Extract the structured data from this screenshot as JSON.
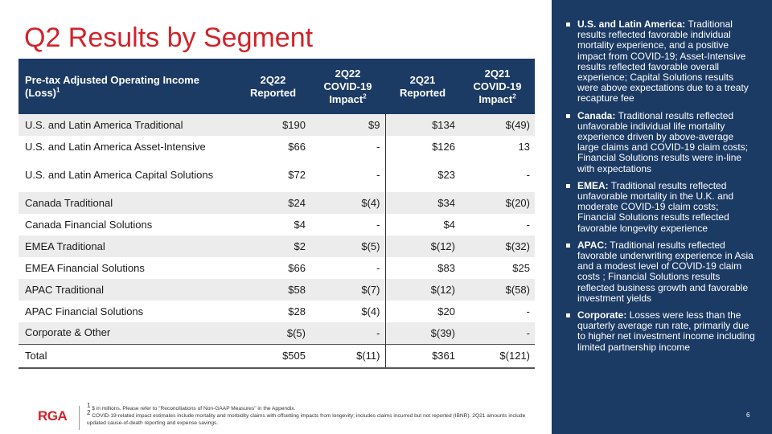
{
  "title": "Q2 Results by Segment",
  "table": {
    "header": {
      "col0_line1": "Pre-tax Adjusted Operating Income",
      "col0_line2": "(Loss)",
      "col0_sup": "1",
      "col1_line1": "2Q22",
      "col1_line2": "Reported",
      "col2_line1": "2Q22",
      "col2_line2": "COVID-19",
      "col2_line3": "Impact",
      "col2_sup": "2",
      "col3_line1": "2Q21",
      "col3_line2": "Reported",
      "col4_line1": "2Q21",
      "col4_line2": "COVID-19",
      "col4_line3": "Impact",
      "col4_sup": "2"
    },
    "rows": [
      {
        "label": "U.S. and Latin America Traditional",
        "c1": "$190",
        "c2": "$9",
        "c3": "$134",
        "c4": "$(49)"
      },
      {
        "label": "U.S. and Latin America Asset-Intensive",
        "c1": "$66",
        "c2": "-",
        "c3": "$126",
        "c4": "13"
      },
      {
        "label": "U.S. and Latin America Capital Solutions",
        "c1": "$72",
        "c2": "-",
        "c3": "$23",
        "c4": "-"
      },
      {
        "label": "Canada Traditional",
        "c1": "$24",
        "c2": "$(4)",
        "c3": "$34",
        "c4": "$(20)"
      },
      {
        "label": "Canada Financial Solutions",
        "c1": "$4",
        "c2": "-",
        "c3": "$4",
        "c4": "-"
      },
      {
        "label": "EMEA Traditional",
        "c1": "$2",
        "c2": "$(5)",
        "c3": "$(12)",
        "c4": "$(32)"
      },
      {
        "label": "EMEA Financial Solutions",
        "c1": "$66",
        "c2": "-",
        "c3": "$83",
        "c4": "$25"
      },
      {
        "label": "APAC Traditional",
        "c1": "$58",
        "c2": "$(7)",
        "c3": "$(12)",
        "c4": "$(58)"
      },
      {
        "label": "APAC Financial Solutions",
        "c1": "$28",
        "c2": "$(4)",
        "c3": "$20",
        "c4": "-"
      },
      {
        "label": "Corporate & Other",
        "c1": "$(5)",
        "c2": "-",
        "c3": "$(39)",
        "c4": "-"
      },
      {
        "label": "Total",
        "c1": "$505",
        "c2": "$(11)",
        "c3": "$361",
        "c4": "$(121)"
      }
    ]
  },
  "footer": {
    "logo": "RGA",
    "note1_sup": "1",
    "note1": "$ in millions. Please refer to \"Reconciliations of Non-GAAP Measures\" in the Appendix.",
    "note2_sup": "2",
    "note2": "COVID-19-related impact estimates include mortality and morbidity claims with offsetting impacts from longevity; includes claims incurred but not reported (IBNR). 2Q21 amounts include updated cause-of-death reporting and expense savings.",
    "page": "6"
  },
  "panel": {
    "bullets": [
      {
        "head": "U.S. and Latin America:",
        "body": " Traditional results reflected favorable individual mortality experience, and a positive impact from COVID-19; Asset-Intensive results reflected favorable overall experience; Capital Solutions results were above expectations due to a treaty recapture fee"
      },
      {
        "head": "Canada:",
        "body": " Traditional results reflected unfavorable individual life mortality experience driven by above-average large claims and COVID-19 claim costs; Financial Solutions results were in-line with expectations"
      },
      {
        "head": "EMEA:",
        "body": " Traditional results reflected unfavorable mortality in the U.K. and moderate COVID-19 claim costs; Financial Solutions results reflected favorable longevity experience"
      },
      {
        "head": "APAC:",
        "body": " Traditional results reflected favorable underwriting experience in Asia and a modest level of COVID-19 claim costs ; Financial Solutions results reflected business growth and favorable investment yields"
      },
      {
        "head": "Corporate:",
        "body": " Losses were less than the quarterly average run rate, primarily due to higher net investment income including limited partnership income"
      }
    ]
  },
  "colors": {
    "title_red": "#d2232a",
    "navy": "#1b3a64",
    "row_shade": "#ececec"
  }
}
